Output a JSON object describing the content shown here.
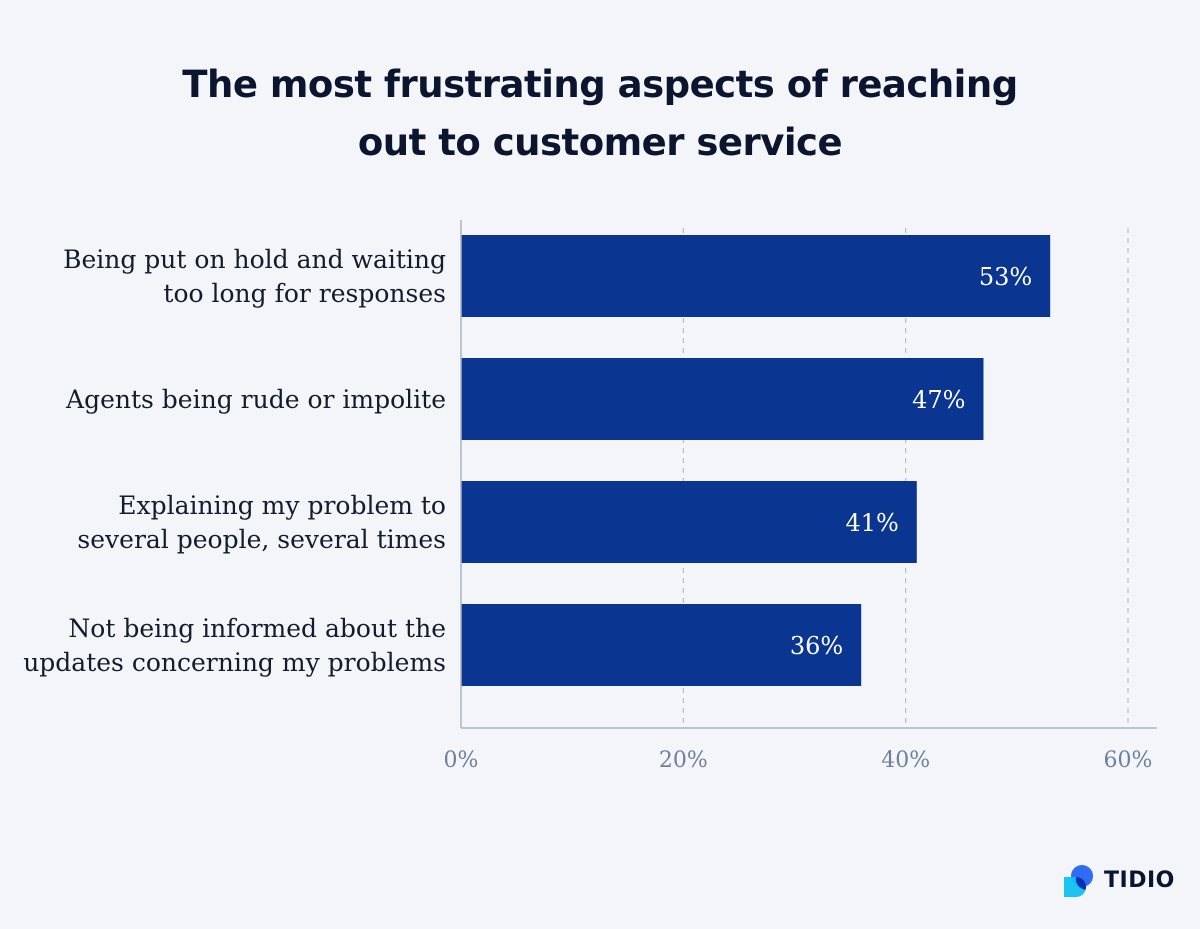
{
  "title_lines": [
    "The most frustrating aspects of reaching",
    "out to customer service"
  ],
  "chart_data": {
    "type": "bar",
    "orientation": "horizontal",
    "title": "The most frustrating aspects of reaching out to customer service",
    "categories": [
      [
        "Being put on hold and waiting",
        "too long for responses"
      ],
      [
        "Agents being rude or impolite"
      ],
      [
        "Explaining my problem to",
        "several people, several times"
      ],
      [
        "Not being informed about the",
        "updates concerning my problems"
      ]
    ],
    "values": [
      53,
      47,
      41,
      36
    ],
    "value_labels": [
      "53%",
      "47%",
      "41%",
      "36%"
    ],
    "xlim": [
      0,
      60
    ],
    "xticks": [
      0,
      20,
      40,
      60
    ],
    "xtick_labels": [
      "0%",
      "20%",
      "40%",
      "60%"
    ],
    "grid": "vertical dashed",
    "bar_color": "#0a3591",
    "grid_color": "#b9bdc8",
    "axis_color": "#a9b4c8",
    "tick_label_color": "#6f7f9d",
    "label_color": "#141b2d"
  },
  "brand": {
    "name": "TIDIO",
    "colors": [
      "#2e6cf6",
      "#10c0f0"
    ]
  }
}
